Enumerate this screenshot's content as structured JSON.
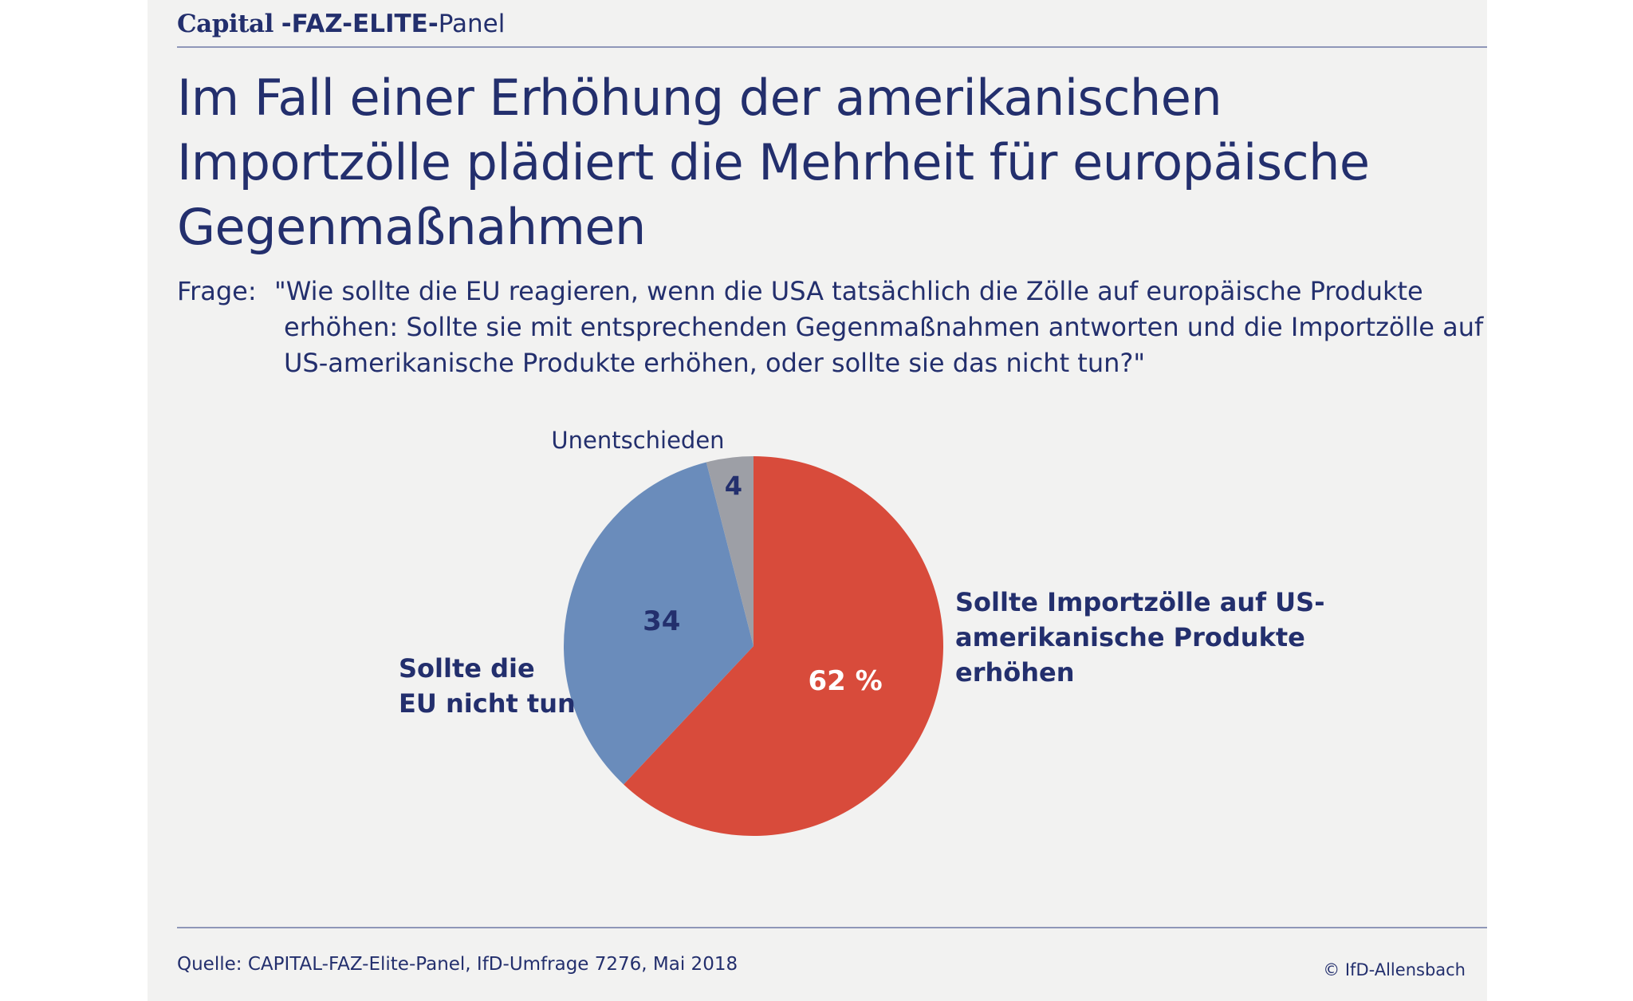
{
  "header": {
    "brand_capital": "Capital",
    "brand_faz": "-FAZ-ELITE-",
    "brand_panel": "Panel"
  },
  "title": "Im Fall einer Erhöhung der amerikanischen Importzölle plädiert die Mehrheit für europäische Gegenmaßnahmen",
  "question": {
    "label": "Frage:",
    "text": "\"Wie sollte die EU reagieren, wenn die USA tatsächlich die Zölle auf europäische Produkte erhöhen: Sollte sie mit entsprechenden Gegenmaßnahmen antworten und die Importzölle auf US-amerikanische Produkte erhöhen, oder sollte sie das nicht tun?\""
  },
  "chart_data": {
    "type": "pie",
    "start": "12 o'clock",
    "direction": "clockwise",
    "slices": [
      {
        "label_lines": [
          "Sollte Importzölle auf US-",
          "amerikanische Produkte",
          "erhöhen"
        ],
        "value": 62,
        "value_label": "62 %",
        "color": "#d84b3b",
        "value_text_color": "#ffffff"
      },
      {
        "label_lines": [
          "Sollte die",
          "EU nicht tun"
        ],
        "value": 34,
        "value_label": "34",
        "color": "#6a8cbb",
        "value_text_color": "#232f6d"
      },
      {
        "label_lines": [
          "Unentschieden"
        ],
        "value": 4,
        "value_label": "4",
        "color": "#9d9fa6",
        "value_text_color": "#232f6d"
      }
    ]
  },
  "footer": {
    "source": "Quelle: CAPITAL-FAZ-Elite-Panel, IfD-Umfrage 7276, Mai 2018",
    "copyright": "© IfD-Allensbach"
  },
  "colors": {
    "text": "#232f6d",
    "background": "#f2f2f1",
    "rule": "#8f97b8"
  }
}
